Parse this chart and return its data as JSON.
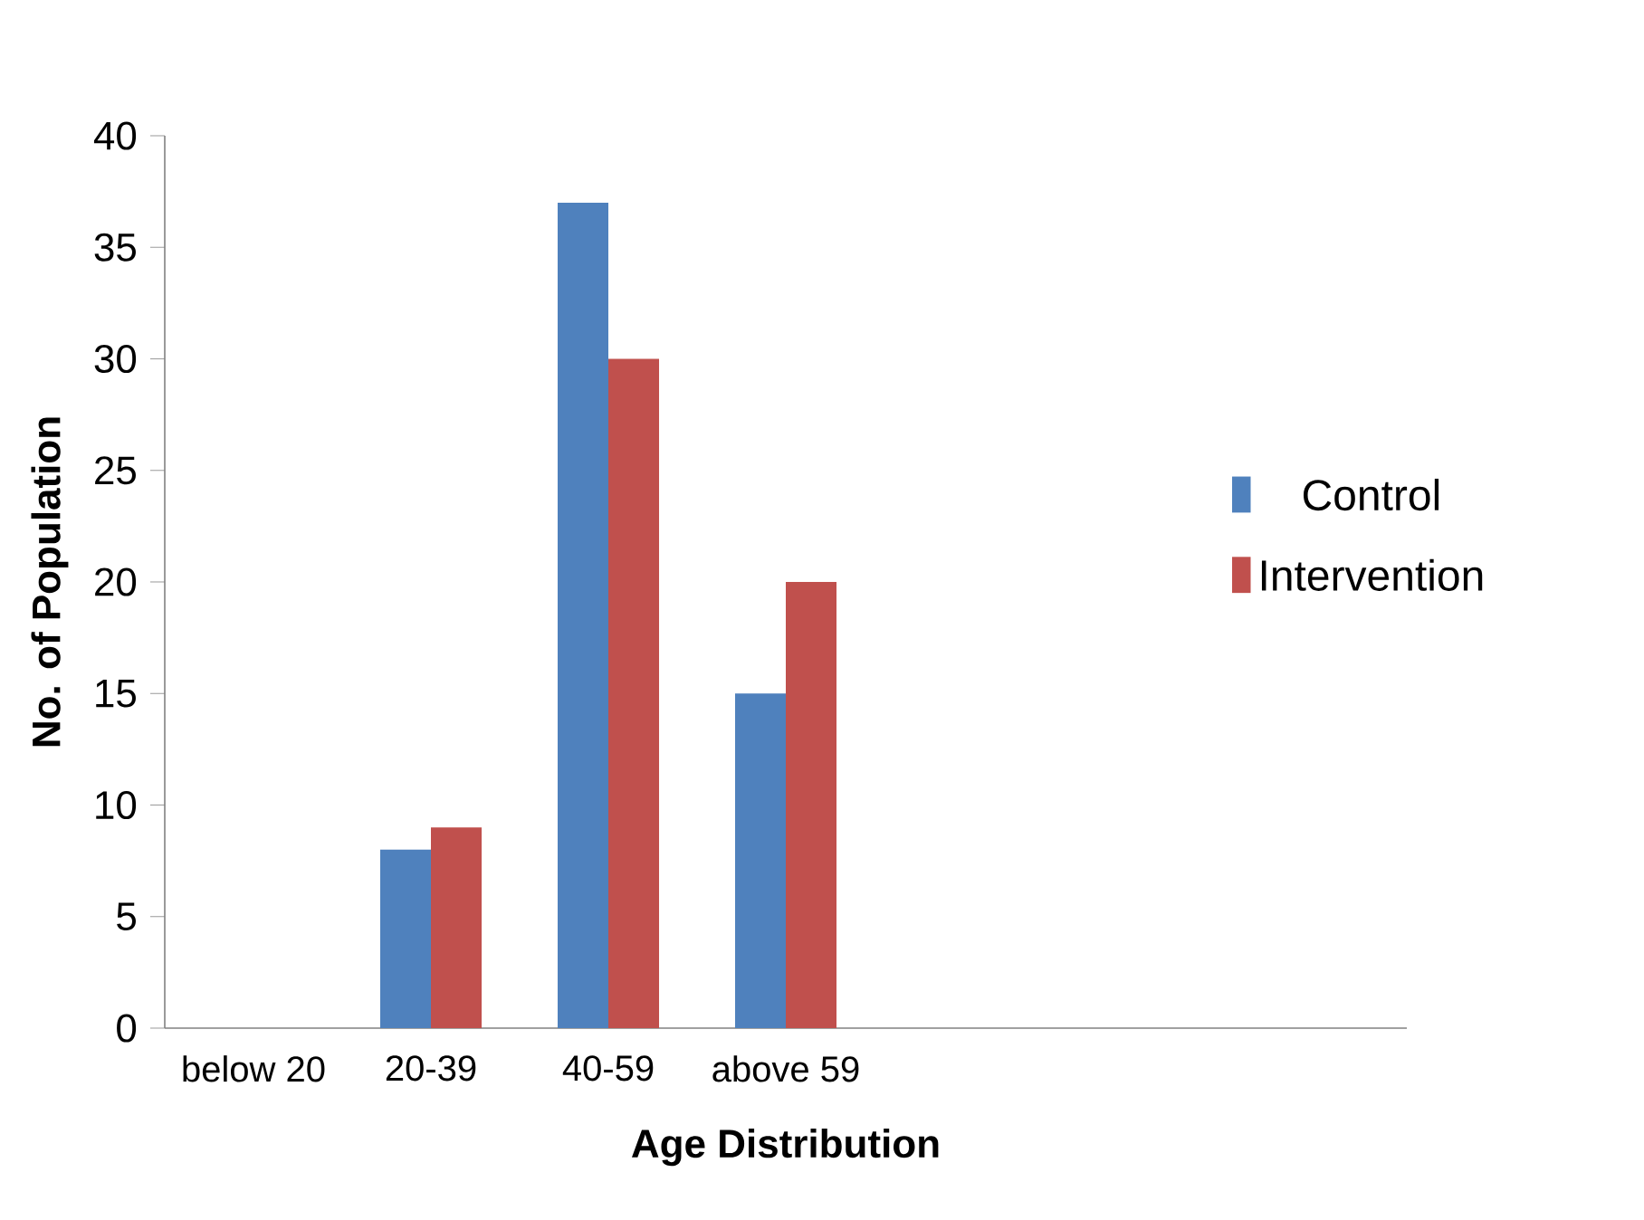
{
  "chart_data": {
    "type": "bar",
    "xlabel": "Age Distribution",
    "ylabel": "No. of Population",
    "categories": [
      "below 20",
      "20-39",
      "40-59",
      "above 59",
      null,
      null,
      null
    ],
    "series": [
      {
        "name": "Control",
        "color": "#4f81bd",
        "values": [
          0,
          8,
          37,
          15,
          null,
          null,
          null
        ]
      },
      {
        "name": "Intervention",
        "color": "#c0504d",
        "values": [
          0,
          9,
          30,
          20,
          null,
          null,
          null
        ]
      }
    ],
    "ylim": [
      0,
      40
    ],
    "yticks": [
      0,
      5,
      10,
      15,
      20,
      25,
      30,
      35,
      40
    ],
    "grid": false,
    "legend": "right"
  }
}
